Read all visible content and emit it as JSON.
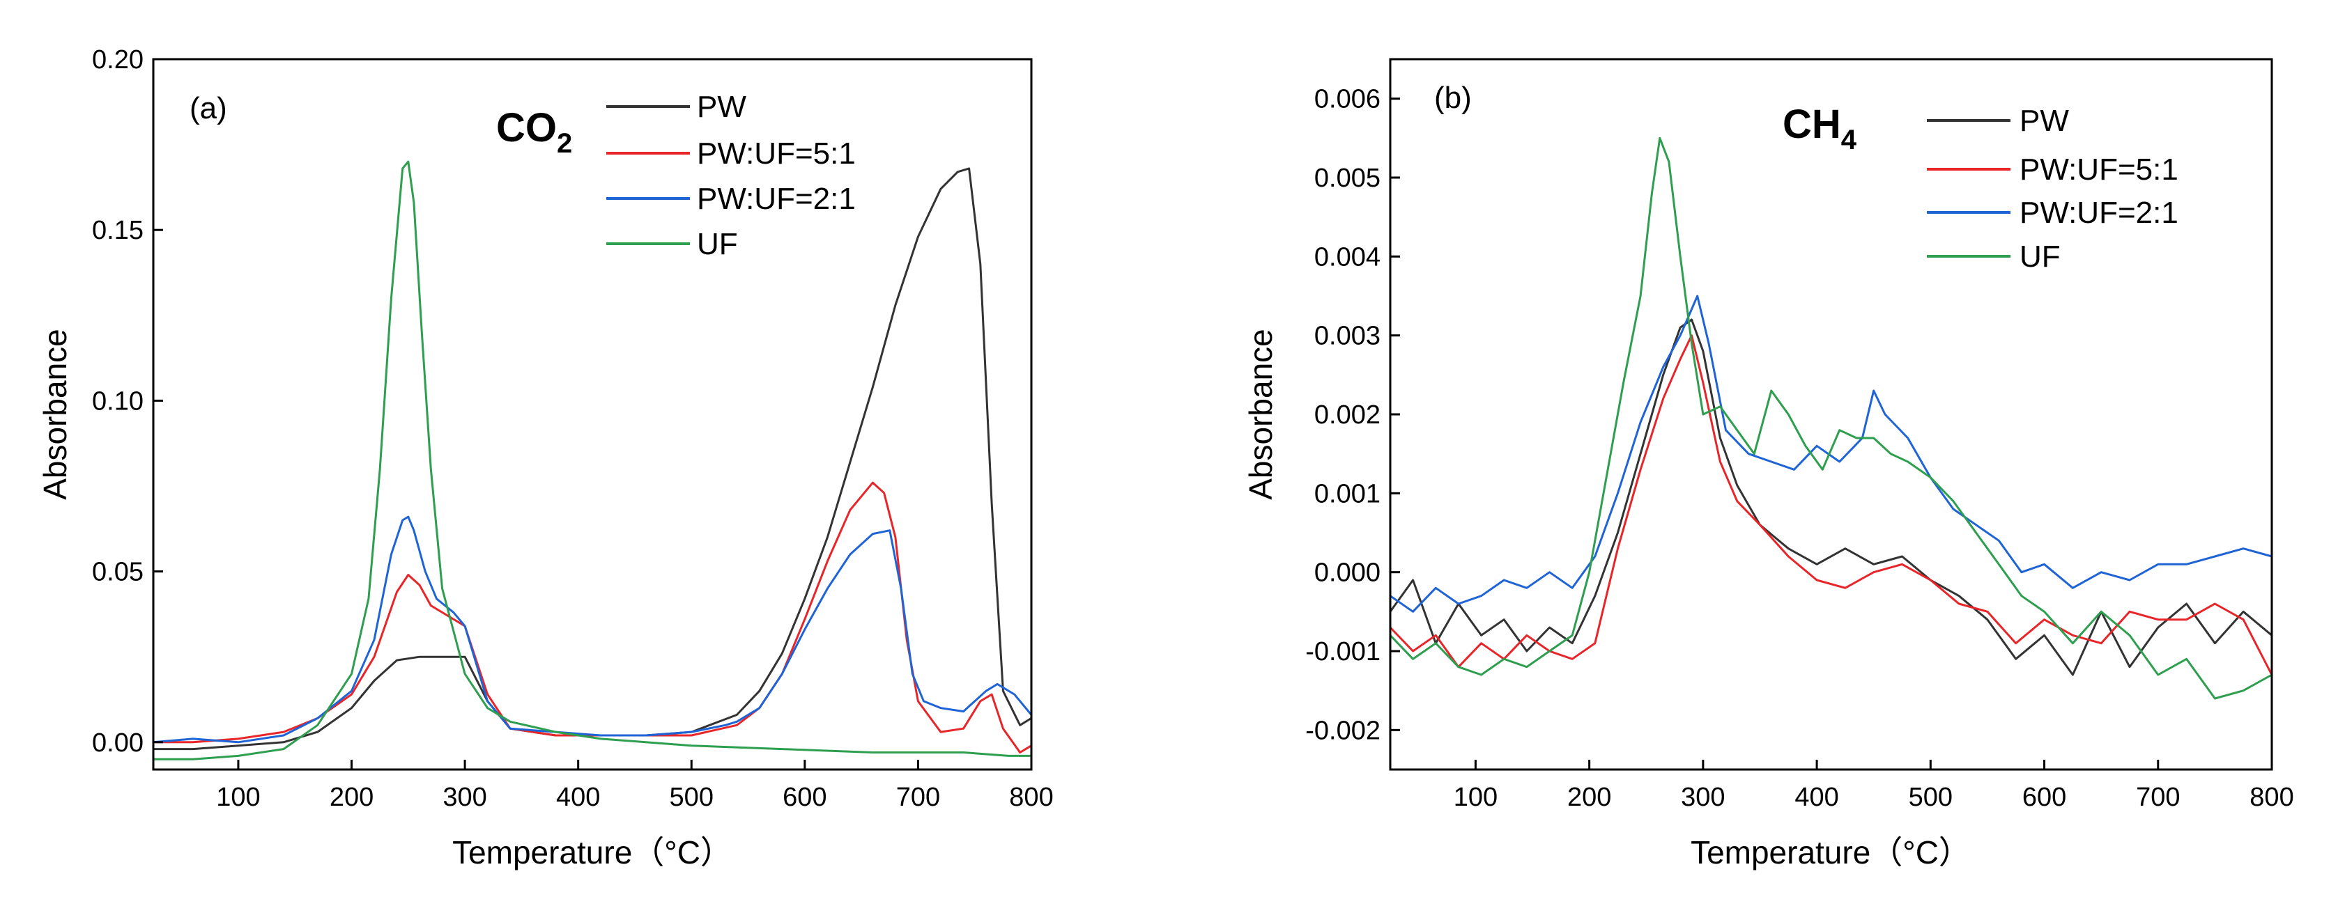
{
  "chart_data": [
    {
      "type": "line",
      "panel_label": "(a)",
      "title": "CO",
      "title_subscript": "2",
      "xlabel": "Temperature（°C）",
      "ylabel": "Absorbance",
      "xlim": [
        25,
        800
      ],
      "ylim": [
        -0.008,
        0.2
      ],
      "xticks": [
        100,
        200,
        300,
        400,
        500,
        600,
        700,
        800
      ],
      "yticks": [
        0.0,
        0.05,
        0.1,
        0.15,
        0.2
      ],
      "ytick_labels": [
        "0.00",
        "0.05",
        "0.10",
        "0.15",
        "0.20"
      ],
      "legend_position": "top-right",
      "series": [
        {
          "name": "PW",
          "color": "#333333",
          "x": [
            25,
            60,
            100,
            140,
            170,
            200,
            220,
            240,
            260,
            280,
            300,
            320,
            340,
            380,
            420,
            460,
            500,
            540,
            560,
            580,
            600,
            620,
            640,
            660,
            680,
            700,
            720,
            735,
            745,
            755,
            765,
            775,
            790,
            800
          ],
          "y": [
            -0.002,
            -0.002,
            -0.001,
            0.0,
            0.003,
            0.01,
            0.018,
            0.024,
            0.025,
            0.025,
            0.025,
            0.012,
            0.004,
            0.002,
            0.002,
            0.002,
            0.003,
            0.008,
            0.015,
            0.026,
            0.042,
            0.06,
            0.082,
            0.104,
            0.128,
            0.148,
            0.162,
            0.167,
            0.168,
            0.14,
            0.07,
            0.015,
            0.005,
            0.007
          ]
        },
        {
          "name": "PW:UF=5:1",
          "color": "#e8262a",
          "x": [
            25,
            60,
            100,
            140,
            170,
            200,
            220,
            240,
            250,
            260,
            270,
            280,
            300,
            320,
            340,
            380,
            420,
            460,
            500,
            540,
            560,
            580,
            600,
            620,
            640,
            660,
            670,
            680,
            690,
            700,
            720,
            740,
            755,
            765,
            775,
            790,
            800
          ],
          "y": [
            0.0,
            0.0,
            0.001,
            0.003,
            0.007,
            0.014,
            0.025,
            0.044,
            0.049,
            0.046,
            0.04,
            0.038,
            0.034,
            0.014,
            0.004,
            0.002,
            0.002,
            0.002,
            0.002,
            0.005,
            0.01,
            0.02,
            0.036,
            0.053,
            0.068,
            0.076,
            0.073,
            0.06,
            0.03,
            0.012,
            0.003,
            0.004,
            0.012,
            0.014,
            0.004,
            -0.003,
            -0.001
          ]
        },
        {
          "name": "PW:UF=2:1",
          "color": "#1f64d6",
          "x": [
            25,
            60,
            100,
            140,
            170,
            200,
            220,
            235,
            245,
            250,
            255,
            265,
            275,
            290,
            300,
            320,
            340,
            380,
            420,
            460,
            500,
            530,
            540,
            560,
            580,
            600,
            620,
            640,
            660,
            675,
            685,
            695,
            705,
            720,
            740,
            760,
            770,
            785,
            800
          ],
          "y": [
            0.0,
            0.001,
            0.0,
            0.002,
            0.007,
            0.015,
            0.03,
            0.055,
            0.065,
            0.066,
            0.062,
            0.05,
            0.042,
            0.038,
            0.034,
            0.012,
            0.004,
            0.003,
            0.002,
            0.002,
            0.003,
            0.005,
            0.006,
            0.01,
            0.02,
            0.033,
            0.045,
            0.055,
            0.061,
            0.062,
            0.045,
            0.02,
            0.012,
            0.01,
            0.009,
            0.015,
            0.017,
            0.014,
            0.008
          ]
        },
        {
          "name": "UF",
          "color": "#2e9e4f",
          "x": [
            25,
            60,
            100,
            140,
            170,
            200,
            215,
            225,
            235,
            245,
            250,
            255,
            262,
            270,
            280,
            300,
            320,
            340,
            380,
            420,
            500,
            580,
            660,
            740,
            780,
            800
          ],
          "y": [
            -0.005,
            -0.005,
            -0.004,
            -0.002,
            0.005,
            0.02,
            0.042,
            0.08,
            0.13,
            0.168,
            0.17,
            0.158,
            0.12,
            0.08,
            0.045,
            0.02,
            0.01,
            0.006,
            0.003,
            0.001,
            -0.001,
            -0.002,
            -0.003,
            -0.003,
            -0.004,
            -0.004
          ]
        }
      ]
    },
    {
      "type": "line",
      "panel_label": "(b)",
      "title": "CH",
      "title_subscript": "4",
      "xlabel": "Temperature（°C）",
      "ylabel": "Absorbance",
      "xlim": [
        25,
        800
      ],
      "ylim": [
        -0.0025,
        0.0065
      ],
      "xticks": [
        100,
        200,
        300,
        400,
        500,
        600,
        700,
        800
      ],
      "yticks": [
        -0.002,
        -0.001,
        0.0,
        0.001,
        0.002,
        0.003,
        0.004,
        0.005,
        0.006
      ],
      "ytick_labels": [
        "-0.002",
        "-0.001",
        "0.000",
        "0.001",
        "0.002",
        "0.003",
        "0.004",
        "0.005",
        "0.006"
      ],
      "legend_position": "top-right",
      "series": [
        {
          "name": "PW",
          "color": "#333333",
          "x": [
            25,
            45,
            65,
            85,
            105,
            125,
            145,
            165,
            185,
            205,
            225,
            245,
            265,
            280,
            290,
            300,
            315,
            330,
            350,
            375,
            400,
            425,
            450,
            475,
            500,
            525,
            550,
            575,
            600,
            625,
            650,
            675,
            700,
            725,
            750,
            775,
            800
          ],
          "y": [
            -0.0005,
            -0.0001,
            -0.0009,
            -0.0004,
            -0.0008,
            -0.0006,
            -0.001,
            -0.0007,
            -0.0009,
            -0.0003,
            0.0005,
            0.0015,
            0.0025,
            0.0031,
            0.0032,
            0.0028,
            0.0017,
            0.0011,
            0.0006,
            0.0003,
            0.0001,
            0.0003,
            0.0001,
            0.0002,
            -0.0001,
            -0.0003,
            -0.0006,
            -0.0011,
            -0.0008,
            -0.0013,
            -0.0005,
            -0.0012,
            -0.0007,
            -0.0004,
            -0.0009,
            -0.0005,
            -0.0008
          ]
        },
        {
          "name": "PW:UF=5:1",
          "color": "#e8262a",
          "x": [
            25,
            45,
            65,
            85,
            105,
            125,
            145,
            165,
            185,
            205,
            225,
            245,
            265,
            280,
            290,
            300,
            315,
            330,
            350,
            375,
            400,
            425,
            450,
            475,
            500,
            525,
            550,
            575,
            600,
            625,
            650,
            675,
            700,
            725,
            750,
            775,
            800
          ],
          "y": [
            -0.0007,
            -0.001,
            -0.0008,
            -0.0012,
            -0.0009,
            -0.0011,
            -0.0008,
            -0.001,
            -0.0011,
            -0.0009,
            0.0003,
            0.0013,
            0.0022,
            0.0027,
            0.003,
            0.0024,
            0.0014,
            0.0009,
            0.0006,
            0.0002,
            -0.0001,
            -0.0002,
            0.0,
            0.0001,
            -0.0001,
            -0.0004,
            -0.0005,
            -0.0009,
            -0.0006,
            -0.0008,
            -0.0009,
            -0.0005,
            -0.0006,
            -0.0006,
            -0.0004,
            -0.0006,
            -0.0013
          ]
        },
        {
          "name": "PW:UF=2:1",
          "color": "#1f64d6",
          "x": [
            25,
            45,
            65,
            85,
            105,
            125,
            145,
            165,
            185,
            205,
            225,
            245,
            265,
            280,
            295,
            305,
            320,
            340,
            360,
            380,
            400,
            420,
            440,
            450,
            460,
            480,
            500,
            520,
            540,
            560,
            580,
            600,
            625,
            650,
            675,
            700,
            725,
            750,
            775,
            800
          ],
          "y": [
            -0.0003,
            -0.0005,
            -0.0002,
            -0.0004,
            -0.0003,
            -0.0001,
            -0.0002,
            0.0,
            -0.0002,
            0.0002,
            0.001,
            0.0019,
            0.0026,
            0.003,
            0.0035,
            0.0029,
            0.0018,
            0.0015,
            0.0014,
            0.0013,
            0.0016,
            0.0014,
            0.0017,
            0.0023,
            0.002,
            0.0017,
            0.0012,
            0.0008,
            0.0006,
            0.0004,
            0.0,
            0.0001,
            -0.0002,
            0.0,
            -0.0001,
            0.0001,
            0.0001,
            0.0002,
            0.0003,
            0.0002
          ]
        },
        {
          "name": "UF",
          "color": "#2e9e4f",
          "x": [
            25,
            45,
            65,
            85,
            105,
            125,
            145,
            165,
            185,
            200,
            215,
            230,
            245,
            255,
            262,
            270,
            280,
            290,
            300,
            315,
            330,
            345,
            360,
            375,
            390,
            405,
            420,
            435,
            450,
            465,
            480,
            500,
            520,
            540,
            560,
            580,
            600,
            625,
            650,
            675,
            700,
            725,
            750,
            775,
            800
          ],
          "y": [
            -0.0008,
            -0.0011,
            -0.0009,
            -0.0012,
            -0.0013,
            -0.0011,
            -0.0012,
            -0.001,
            -0.0008,
            0.0,
            0.0012,
            0.0024,
            0.0035,
            0.0048,
            0.0055,
            0.0052,
            0.004,
            0.0029,
            0.002,
            0.0021,
            0.0018,
            0.0015,
            0.0023,
            0.002,
            0.0016,
            0.0013,
            0.0018,
            0.0017,
            0.0017,
            0.0015,
            0.0014,
            0.0012,
            0.0009,
            0.0005,
            0.0001,
            -0.0003,
            -0.0005,
            -0.0009,
            -0.0005,
            -0.0008,
            -0.0013,
            -0.0011,
            -0.0016,
            -0.0015,
            -0.0013
          ]
        }
      ]
    }
  ]
}
